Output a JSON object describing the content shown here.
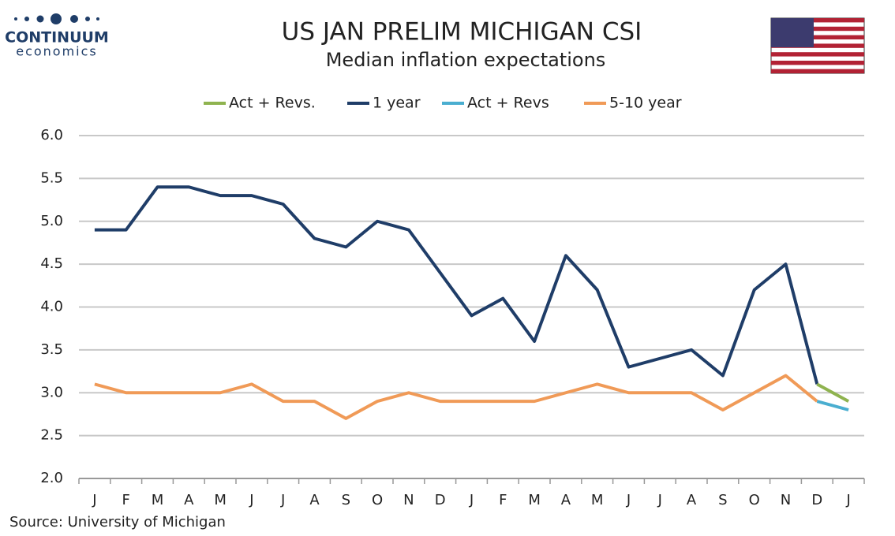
{
  "logo": {
    "name": "CONTINUUM",
    "tagline": "economics"
  },
  "chart_data": {
    "type": "line",
    "title": "US JAN PRELIM MICHIGAN CSI",
    "subtitle": "Median inflation expectations",
    "source": "Source: University of Michigan",
    "categories": [
      "J",
      "F",
      "M",
      "A",
      "M",
      "J",
      "J",
      "A",
      "S",
      "O",
      "N",
      "D",
      "J",
      "F",
      "M",
      "A",
      "M",
      "J",
      "J",
      "A",
      "S",
      "O",
      "N",
      "D",
      "J"
    ],
    "series": [
      {
        "name": "Act + Revs.",
        "color": "#8fb34f",
        "values": [
          null,
          null,
          null,
          null,
          null,
          null,
          null,
          null,
          null,
          null,
          null,
          null,
          null,
          null,
          null,
          null,
          null,
          null,
          null,
          null,
          null,
          null,
          null,
          3.1,
          2.9
        ]
      },
      {
        "name": "1 year",
        "color": "#1f3d68",
        "values": [
          4.9,
          4.9,
          5.4,
          5.4,
          5.3,
          5.3,
          5.2,
          4.8,
          4.7,
          5.0,
          4.9,
          4.4,
          3.9,
          4.1,
          3.6,
          4.6,
          4.2,
          3.3,
          3.4,
          3.5,
          3.2,
          4.2,
          4.5,
          3.1,
          null
        ]
      },
      {
        "name": "Act + Revs",
        "color": "#4aaed0",
        "values": [
          null,
          null,
          null,
          null,
          null,
          null,
          null,
          null,
          null,
          null,
          null,
          null,
          null,
          null,
          null,
          null,
          null,
          null,
          null,
          null,
          null,
          null,
          null,
          2.9,
          2.8
        ]
      },
      {
        "name": "5-10 year",
        "color": "#f09a57",
        "values": [
          3.1,
          3.0,
          3.0,
          3.0,
          3.0,
          3.1,
          2.9,
          2.9,
          2.7,
          2.9,
          3.0,
          2.9,
          2.9,
          2.9,
          2.9,
          3.0,
          3.1,
          3.0,
          3.0,
          3.0,
          2.8,
          3.0,
          3.2,
          2.9,
          null
        ]
      }
    ],
    "ylim": [
      2.0,
      6.0
    ],
    "yticks": [
      {
        "value": 2.0,
        "label": "2.0"
      },
      {
        "value": 2.5,
        "label": "2.5"
      },
      {
        "value": 3.0,
        "label": "3.0"
      },
      {
        "value": 3.5,
        "label": "3.5"
      },
      {
        "value": 4.0,
        "label": "4.0"
      },
      {
        "value": 4.5,
        "label": "4.5"
      },
      {
        "value": 5.0,
        "label": "5.0"
      },
      {
        "value": 5.5,
        "label": "5.5"
      },
      {
        "value": 6.0,
        "label": "6.0"
      }
    ],
    "grid": true,
    "legend": "top"
  }
}
